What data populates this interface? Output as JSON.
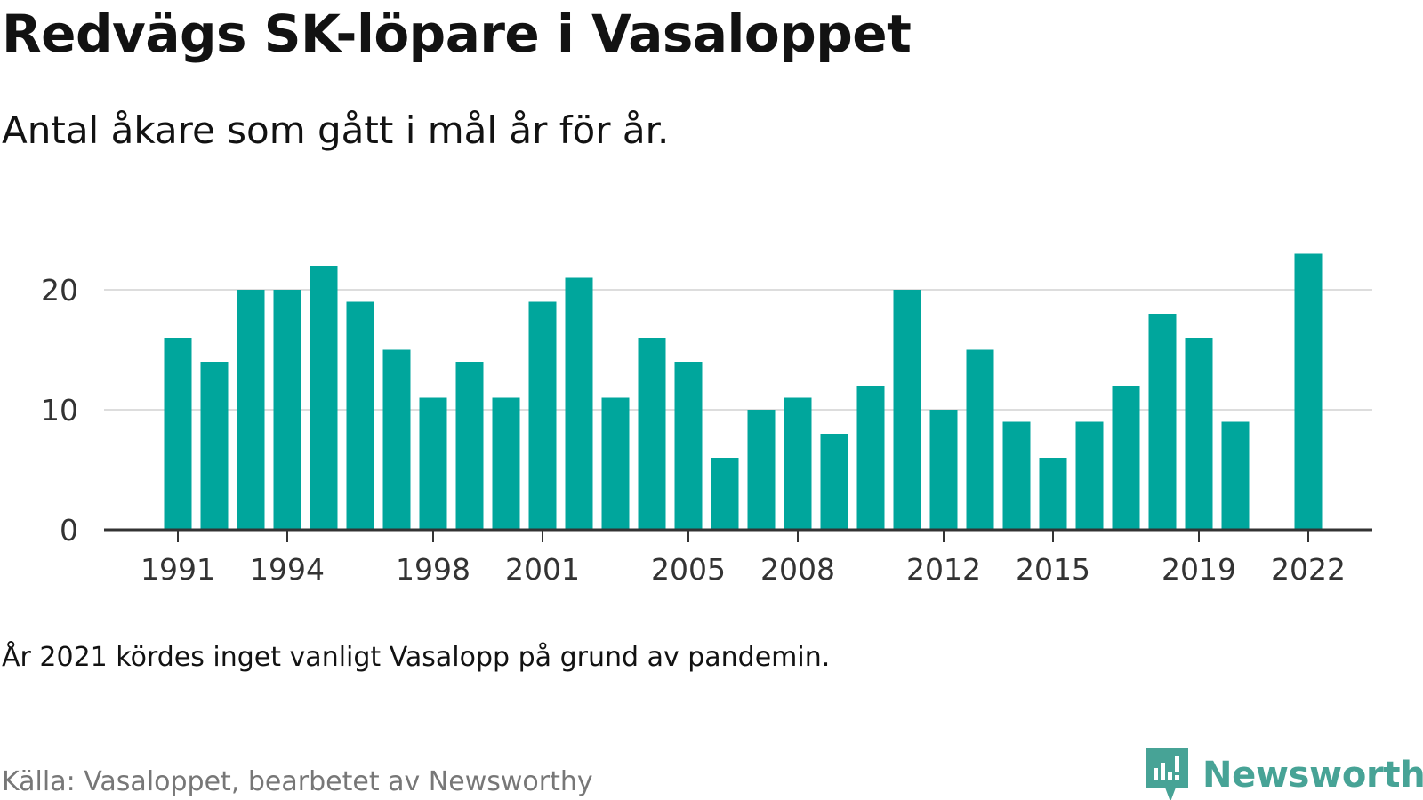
{
  "title": "Redvägs SK-löpare i Vasaloppet",
  "subtitle": "Antal åkare som gått i mål år för år.",
  "note": "År 2021 kördes inget vanligt Vasalopp på grund av pandemin.",
  "source": "Källa: Vasaloppet, bearbetet av Newsworthy",
  "brand": {
    "name": "Newsworthy",
    "logo_icon": "newsworthy-logo-icon",
    "color": "#47a396"
  },
  "colors": {
    "bar": "#00a69c",
    "grid": "#dddddd",
    "axis": "#333333"
  },
  "chart_data": {
    "type": "bar",
    "categories": [
      "1991",
      "1992",
      "1993",
      "1994",
      "1995",
      "1996",
      "1997",
      "1998",
      "1999",
      "2000",
      "2001",
      "2002",
      "2003",
      "2004",
      "2005",
      "2006",
      "2007",
      "2008",
      "2009",
      "2010",
      "2011",
      "2012",
      "2013",
      "2014",
      "2015",
      "2016",
      "2017",
      "2018",
      "2019",
      "2020",
      "2021",
      "2022"
    ],
    "values": [
      16,
      14,
      20,
      20,
      22,
      19,
      15,
      11,
      14,
      11,
      19,
      21,
      11,
      16,
      14,
      6,
      10,
      11,
      8,
      12,
      20,
      10,
      15,
      9,
      6,
      9,
      12,
      18,
      16,
      9,
      null,
      23
    ],
    "x_tick_labels": [
      "1991",
      "1994",
      "1998",
      "2001",
      "2005",
      "2008",
      "2012",
      "2015",
      "2019",
      "2022"
    ],
    "y_ticks": [
      0,
      10,
      20
    ],
    "ylim": [
      0,
      23
    ],
    "xlabel": "",
    "ylabel": "",
    "grid": true,
    "legend": "none"
  }
}
